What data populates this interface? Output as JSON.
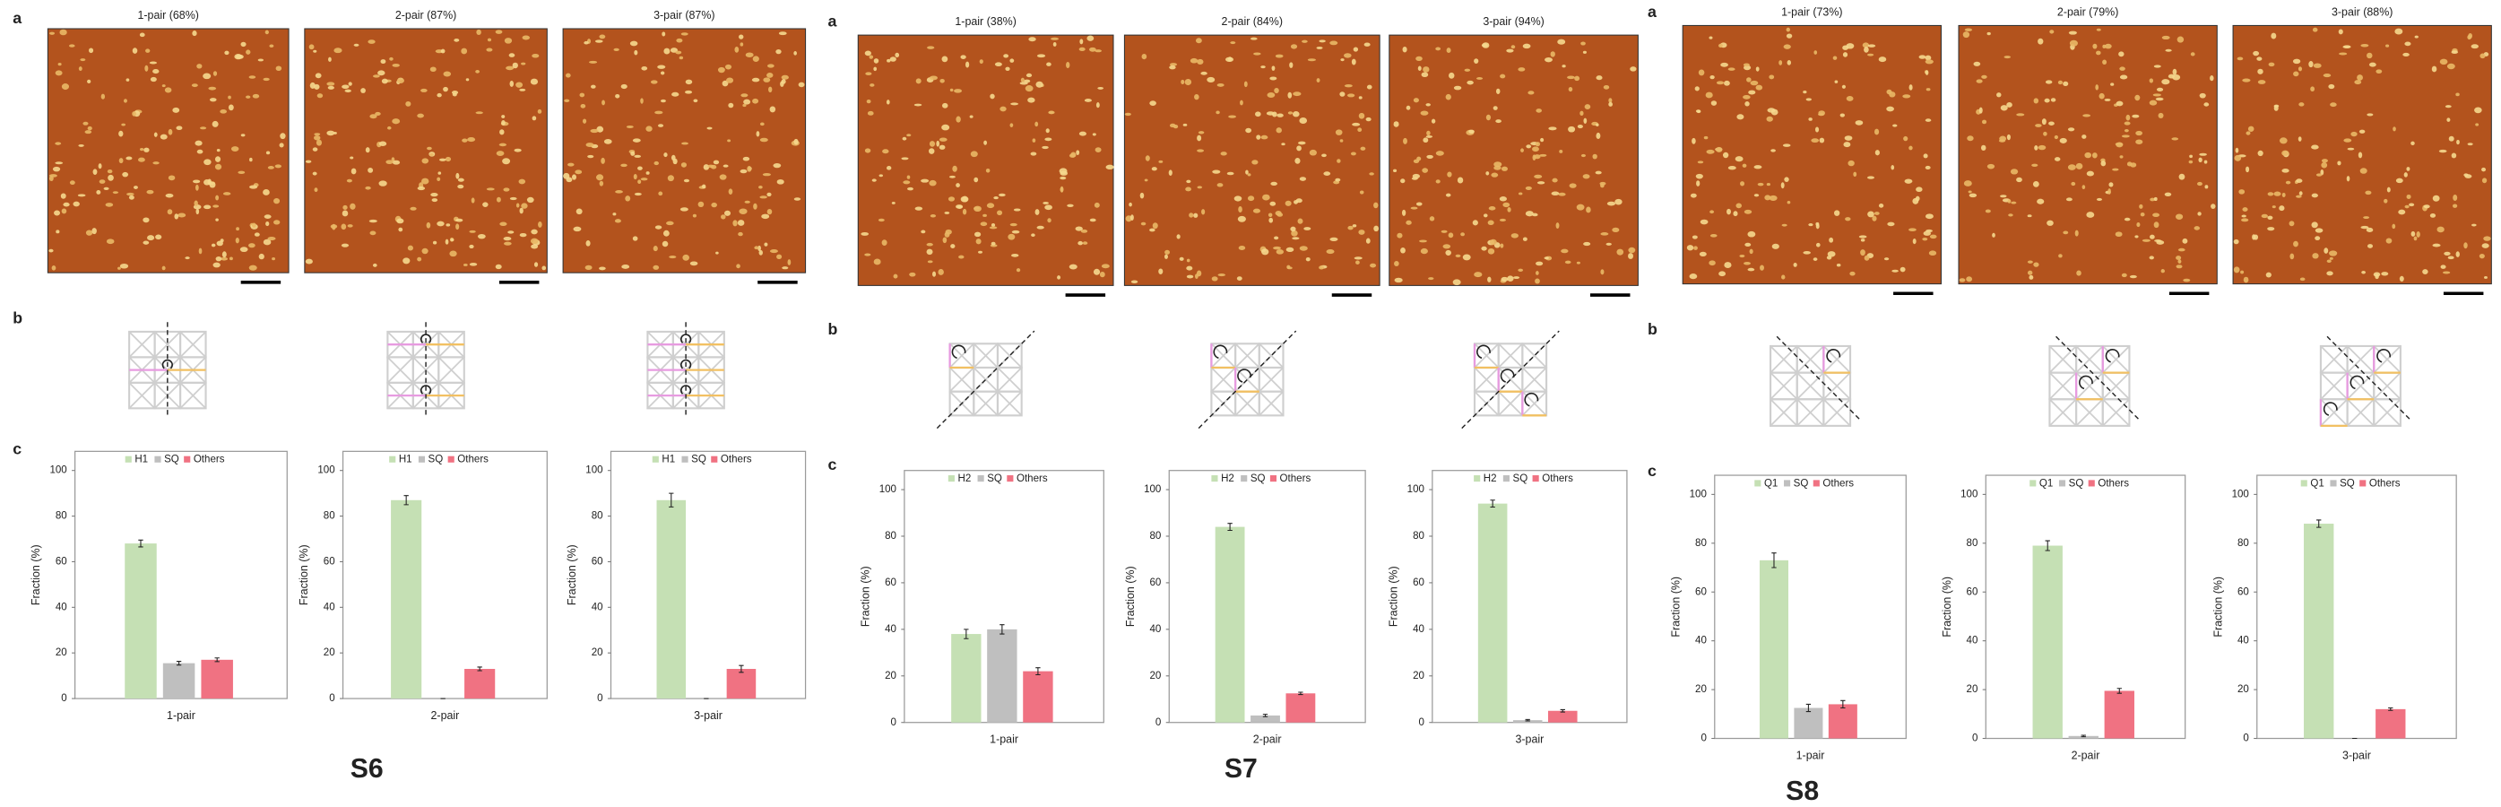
{
  "figures": [
    {
      "label": "S6",
      "panel_labels": [
        "a",
        "b",
        "c"
      ],
      "images": [
        "1-pair (68%)",
        "2-pair (87%)",
        "3-pair (87%)"
      ]
    },
    {
      "label": "S7",
      "panel_labels": [
        "a",
        "b",
        "c"
      ],
      "images": [
        "1-pair (38%)",
        "2-pair (84%)",
        "3-pair (94%)"
      ]
    },
    {
      "label": "S8",
      "panel_labels": [
        "a",
        "b",
        "c"
      ],
      "images": [
        "1-pair (73%)",
        "2-pair (79%)",
        "3-pair (88%)"
      ]
    }
  ],
  "chart_data": [
    {
      "type": "bar",
      "y_label": "Fraction (%)",
      "categories": [
        "1-pair"
      ],
      "ylim": [
        0,
        100
      ],
      "yticks": [
        0,
        20,
        40,
        60,
        80,
        100
      ],
      "legend": "top",
      "series": [
        {
          "name": "H1",
          "color": "#c5e0b4",
          "values": [
            68
          ],
          "errors": [
            1.5
          ]
        },
        {
          "name": "SQ",
          "color": "#bfbfbf",
          "values": [
            15.5
          ],
          "errors": [
            0.8
          ]
        },
        {
          "name": "Others",
          "color": "#f07282",
          "values": [
            17
          ],
          "errors": [
            0.8
          ]
        }
      ]
    },
    {
      "type": "bar",
      "y_label": "Fraction (%)",
      "categories": [
        "2-pair"
      ],
      "ylim": [
        0,
        100
      ],
      "yticks": [
        0,
        20,
        40,
        60,
        80,
        100
      ],
      "legend": "top",
      "series": [
        {
          "name": "H1",
          "color": "#c5e0b4",
          "values": [
            87
          ],
          "errors": [
            2
          ]
        },
        {
          "name": "SQ",
          "color": "#bfbfbf",
          "values": [
            0
          ],
          "errors": [
            0
          ]
        },
        {
          "name": "Others",
          "color": "#f07282",
          "values": [
            13
          ],
          "errors": [
            0.8
          ]
        }
      ]
    },
    {
      "type": "bar",
      "y_label": "Fraction (%)",
      "categories": [
        "3-pair"
      ],
      "ylim": [
        0,
        100
      ],
      "yticks": [
        0,
        20,
        40,
        60,
        80,
        100
      ],
      "legend": "top",
      "series": [
        {
          "name": "H1",
          "color": "#c5e0b4",
          "values": [
            87
          ],
          "errors": [
            3
          ]
        },
        {
          "name": "SQ",
          "color": "#bfbfbf",
          "values": [
            0
          ],
          "errors": [
            0
          ]
        },
        {
          "name": "Others",
          "color": "#f07282",
          "values": [
            13
          ],
          "errors": [
            1.5
          ]
        }
      ]
    },
    {
      "type": "bar",
      "y_label": "Fraction (%)",
      "categories": [
        "1-pair"
      ],
      "ylim": [
        0,
        100
      ],
      "yticks": [
        0,
        20,
        40,
        60,
        80,
        100
      ],
      "legend": "top",
      "series": [
        {
          "name": "H2",
          "color": "#c5e0b4",
          "values": [
            38
          ],
          "errors": [
            2
          ]
        },
        {
          "name": "SQ",
          "color": "#bfbfbf",
          "values": [
            40
          ],
          "errors": [
            2
          ]
        },
        {
          "name": "Others",
          "color": "#f07282",
          "values": [
            22
          ],
          "errors": [
            1.5
          ]
        }
      ]
    },
    {
      "type": "bar",
      "y_label": "Fraction (%)",
      "categories": [
        "2-pair"
      ],
      "ylim": [
        0,
        100
      ],
      "yticks": [
        0,
        20,
        40,
        60,
        80,
        100
      ],
      "legend": "top",
      "series": [
        {
          "name": "H2",
          "color": "#c5e0b4",
          "values": [
            84
          ],
          "errors": [
            1.5
          ]
        },
        {
          "name": "SQ",
          "color": "#bfbfbf",
          "values": [
            3
          ],
          "errors": [
            0.5
          ]
        },
        {
          "name": "Others",
          "color": "#f07282",
          "values": [
            12.5
          ],
          "errors": [
            0.5
          ]
        }
      ]
    },
    {
      "type": "bar",
      "y_label": "Fraction (%)",
      "categories": [
        "3-pair"
      ],
      "ylim": [
        0,
        100
      ],
      "yticks": [
        0,
        20,
        40,
        60,
        80,
        100
      ],
      "legend": "top",
      "series": [
        {
          "name": "H2",
          "color": "#c5e0b4",
          "values": [
            94
          ],
          "errors": [
            1.5
          ]
        },
        {
          "name": "SQ",
          "color": "#bfbfbf",
          "values": [
            1
          ],
          "errors": [
            0.3
          ]
        },
        {
          "name": "Others",
          "color": "#f07282",
          "values": [
            5
          ],
          "errors": [
            0.5
          ]
        }
      ]
    },
    {
      "type": "bar",
      "y_label": "Fraction (%)",
      "categories": [
        "1-pair"
      ],
      "ylim": [
        0,
        100
      ],
      "yticks": [
        0,
        20,
        40,
        60,
        80,
        100
      ],
      "legend": "top",
      "series": [
        {
          "name": "Q1",
          "color": "#c5e0b4",
          "values": [
            73
          ],
          "errors": [
            3
          ]
        },
        {
          "name": "SQ",
          "color": "#bfbfbf",
          "values": [
            12.5
          ],
          "errors": [
            1.5
          ]
        },
        {
          "name": "Others",
          "color": "#f07282",
          "values": [
            14
          ],
          "errors": [
            1.5
          ]
        }
      ]
    },
    {
      "type": "bar",
      "y_label": "Fraction (%)",
      "categories": [
        "2-pair"
      ],
      "ylim": [
        0,
        100
      ],
      "yticks": [
        0,
        20,
        40,
        60,
        80,
        100
      ],
      "legend": "top",
      "series": [
        {
          "name": "Q1",
          "color": "#c5e0b4",
          "values": [
            79
          ],
          "errors": [
            2
          ]
        },
        {
          "name": "SQ",
          "color": "#bfbfbf",
          "values": [
            1
          ],
          "errors": [
            0.3
          ]
        },
        {
          "name": "Others",
          "color": "#f07282",
          "values": [
            19.5
          ],
          "errors": [
            1
          ]
        }
      ]
    },
    {
      "type": "bar",
      "y_label": "Fraction (%)",
      "categories": [
        "3-pair"
      ],
      "ylim": [
        0,
        100
      ],
      "yticks": [
        0,
        20,
        40,
        60,
        80,
        100
      ],
      "legend": "top",
      "series": [
        {
          "name": "Q1",
          "color": "#c5e0b4",
          "values": [
            88
          ],
          "errors": [
            1.5
          ]
        },
        {
          "name": "SQ",
          "color": "#bfbfbf",
          "values": [
            0
          ],
          "errors": [
            0
          ]
        },
        {
          "name": "Others",
          "color": "#f07282",
          "values": [
            12
          ],
          "errors": [
            0.5
          ]
        }
      ]
    }
  ]
}
